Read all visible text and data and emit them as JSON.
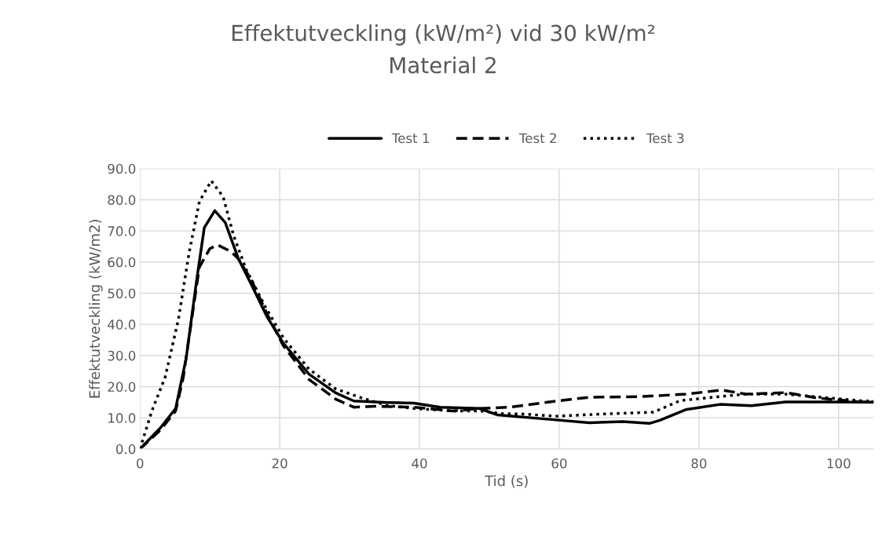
{
  "chart_data": {
    "type": "line",
    "title": "Effektutveckling (kW/m²) vid 30 kW/m²",
    "subtitle": "Material 2",
    "xlabel": "Tid (s)",
    "ylabel": "Effektutveckling (kW/m2)",
    "xlim": [
      0,
      105
    ],
    "xticks": [
      0,
      20,
      40,
      60,
      80,
      100
    ],
    "ylim": [
      0,
      90
    ],
    "yticks": [
      {
        "value": 0,
        "label": "0.0"
      },
      {
        "value": 10,
        "label": "10.0"
      },
      {
        "value": 20,
        "label": "20.0"
      },
      {
        "value": 30,
        "label": "30.0"
      },
      {
        "value": 40,
        "label": "40.0"
      },
      {
        "value": 50,
        "label": "50.0"
      },
      {
        "value": 60,
        "label": "60.0"
      },
      {
        "value": 70,
        "label": "70.0"
      },
      {
        "value": 80,
        "label": "80.0"
      },
      {
        "value": 90,
        "label": "90.0"
      }
    ],
    "grid": true,
    "legend": "top",
    "marker": "none",
    "series": [
      {
        "name": "Test 1",
        "color": "#000000",
        "line_style": "solid",
        "x": [
          0,
          2.9,
          5.1,
          6.6,
          8.1,
          9.2,
          10.7,
          12.2,
          14.1,
          16,
          18.2,
          20.5,
          24.2,
          28,
          30.6,
          35.5,
          39.2,
          43,
          48.6,
          51.2,
          58.6,
          64.3,
          69.1,
          72.9,
          74.4,
          78.1,
          83,
          87.5,
          92.4,
          98,
          105
        ],
        "values": [
          0,
          6.7,
          13,
          29,
          54,
          71,
          76.5,
          72.7,
          61,
          52.5,
          42.4,
          34,
          24,
          18,
          15.4,
          14.9,
          14.7,
          13.4,
          13,
          10.9,
          9.5,
          8.4,
          8.8,
          8.2,
          9.2,
          12.6,
          14.3,
          13.9,
          15.1,
          15.1,
          15
        ]
      },
      {
        "name": "Test 2",
        "color": "#000000",
        "line_style": "dashed",
        "x": [
          0,
          2.9,
          5.1,
          6.2,
          7.4,
          8.5,
          10,
          11.1,
          13,
          14.1,
          16,
          18.2,
          20.5,
          24.2,
          28,
          30.6,
          33.6,
          39.2,
          44.8,
          48.6,
          53,
          58.6,
          64.3,
          71.7,
          78.1,
          83.3,
          86.7,
          92.4,
          96.8,
          103,
          105
        ],
        "values": [
          0,
          6,
          12.2,
          23,
          41.6,
          58.4,
          64.3,
          65.5,
          63.4,
          61,
          54,
          43.3,
          33.2,
          22.3,
          16,
          13.4,
          13.7,
          13.4,
          12.2,
          13,
          13.4,
          15.1,
          16.6,
          16.8,
          17.6,
          18.9,
          17.6,
          18.1,
          16.4,
          15.1,
          15
        ]
      },
      {
        "name": "Test 3",
        "color": "#000000",
        "line_style": "dotted",
        "x": [
          0,
          1.7,
          3.6,
          5.5,
          7,
          8.5,
          10.2,
          11.9,
          13.4,
          15.2,
          17.9,
          20.5,
          24.2,
          28,
          31.7,
          35.5,
          39.2,
          44.8,
          48.6,
          52,
          55,
          59.4,
          66.1,
          73.5,
          77.3,
          82.9,
          86.7,
          92.4,
          103,
          105
        ],
        "values": [
          0,
          12.2,
          23,
          41.6,
          62.6,
          79.4,
          86.1,
          81,
          68.5,
          57.6,
          45.8,
          35.7,
          25.6,
          19.3,
          16.4,
          13.9,
          13,
          12.2,
          12.2,
          11.3,
          11.2,
          10.5,
          11.2,
          11.8,
          15.5,
          16.8,
          17.6,
          17.6,
          15.5,
          15.3
        ]
      }
    ]
  }
}
